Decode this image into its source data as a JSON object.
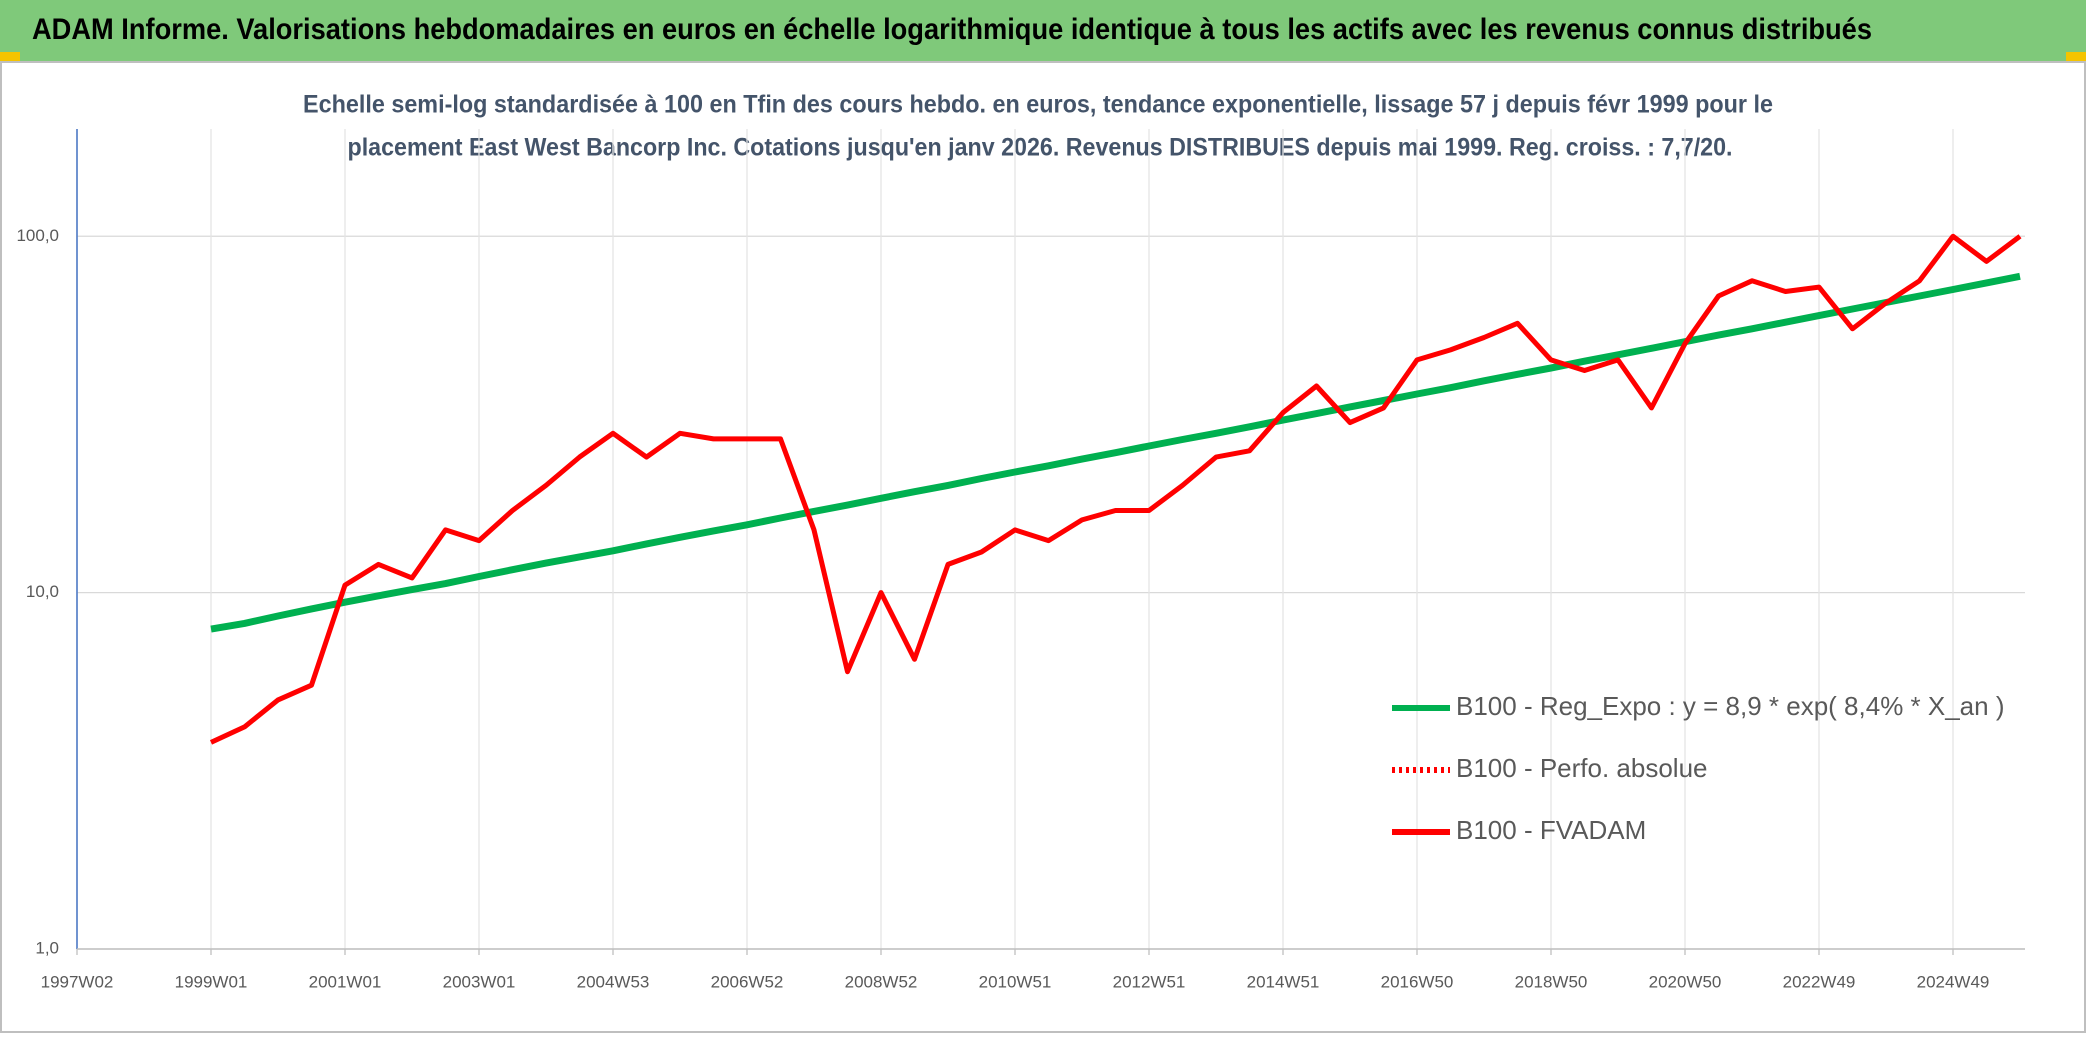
{
  "header": {
    "title": "ADAM Informe. Valorisations hebdomadaires en euros en échelle logarithmique identique à tous les actifs avec les revenus connus distribués"
  },
  "chart_data": {
    "type": "line",
    "subtitle": [
      "Echelle semi-log standardisée à 100 en Tfin des cours hebdo. en euros, tendance exponentielle, lissage 57 j depuis févr 1999 pour le",
      "placement East West Bancorp Inc. Cotations jusqu'en janv 2026. Revenus DISTRIBUES depuis mai 1999. Reg. croiss. : 7,7/20."
    ],
    "categories": [
      "1997W02",
      null,
      null,
      null,
      "1999W01",
      null,
      null,
      null,
      "2001W01",
      null,
      null,
      null,
      "2003W01",
      null,
      null,
      null,
      "2004W53",
      null,
      null,
      null,
      "2006W52",
      null,
      null,
      null,
      "2008W52",
      null,
      null,
      null,
      "2010W51",
      null,
      null,
      null,
      "2012W51",
      null,
      null,
      null,
      "2014W51",
      null,
      null,
      null,
      "2016W50",
      null,
      null,
      null,
      "2018W50",
      null,
      null,
      null,
      "2020W50",
      null,
      null,
      null,
      "2022W49",
      null,
      null,
      null,
      "2024W49",
      null,
      null
    ],
    "series": [
      {
        "name": "B100 - Reg_Expo : y = 8,9 * exp( 8,4% *  X_an )",
        "color": "#00b050",
        "dash": "solid",
        "values": [
          null,
          null,
          null,
          null,
          7.9,
          8.2,
          8.6,
          9.0,
          9.4,
          9.8,
          10.2,
          10.6,
          11.1,
          11.6,
          12.1,
          12.6,
          13.1,
          13.7,
          14.3,
          14.9,
          15.5,
          16.2,
          16.9,
          17.6,
          18.4,
          19.2,
          20.0,
          20.9,
          21.8,
          22.7,
          23.7,
          24.7,
          25.8,
          26.9,
          28.0,
          29.2,
          30.5,
          31.8,
          33.2,
          34.6,
          36.1,
          37.6,
          39.3,
          41.0,
          42.7,
          44.6,
          46.5,
          48.5,
          50.6,
          52.8,
          55.0,
          57.4,
          59.9,
          62.5,
          65.2,
          68.0,
          70.9,
          74.0,
          77.2
        ]
      },
      {
        "name": "B100 - Perfo. absolue",
        "color": "#ff0000",
        "dash": "dotted",
        "values": [
          null,
          null,
          null,
          null,
          null,
          null,
          null,
          null,
          null,
          null,
          null,
          null,
          null,
          null,
          null,
          null,
          null,
          null,
          null,
          null,
          null,
          null,
          null,
          null,
          null,
          null,
          null,
          null,
          null,
          null,
          null,
          null,
          null,
          null,
          null,
          null,
          null,
          null,
          null,
          null,
          null,
          null,
          null,
          null,
          null,
          null,
          null,
          null,
          null,
          null,
          null,
          null,
          null,
          null,
          null,
          null,
          null,
          null,
          null
        ]
      },
      {
        "name": "B100 - FVADAM",
        "color": "#ff0000",
        "dash": "solid",
        "values": [
          null,
          null,
          null,
          null,
          3.8,
          4.2,
          5.0,
          5.5,
          10.5,
          12,
          11,
          15,
          14,
          17,
          20,
          24,
          28,
          24,
          28,
          27,
          27,
          27,
          15,
          6,
          10,
          6.5,
          12,
          13,
          15,
          14,
          16,
          17,
          17,
          20,
          24,
          25,
          32,
          38,
          30,
          33,
          45,
          48,
          52,
          57,
          45,
          42,
          45,
          33,
          50,
          68,
          75,
          70,
          72,
          55,
          65,
          75,
          100,
          85,
          100
        ]
      }
    ],
    "log_scale": true,
    "ylim": [
      1,
      200
    ],
    "yticks": [
      {
        "value": 1,
        "label": "1,0"
      },
      {
        "value": 10,
        "label": "10,0"
      },
      {
        "value": 100,
        "label": "100,0"
      }
    ],
    "grid": true
  }
}
